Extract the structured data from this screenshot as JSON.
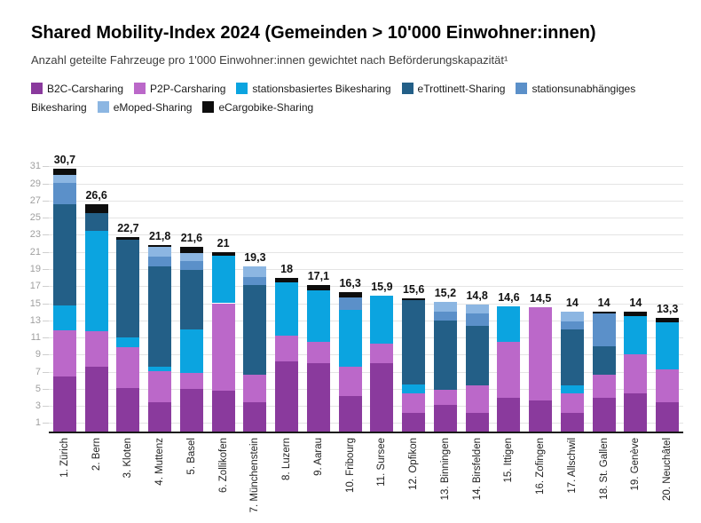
{
  "header": {
    "title": "Shared Mobility-Index 2024 (Gemeinden > 10'000 Einwohner:innen)",
    "subtitle": "Anzahl geteilte Fahrzeuge pro 1'000 Einwohner:innen gewichtet nach Beförderungskapazität¹"
  },
  "colors": {
    "b2c_carsharing": "#8a3a9d",
    "p2p_carsharing": "#bb68c9",
    "stationsbasiertes_bikesharing": "#0ba4e0",
    "etrottinett_sharing": "#235f87",
    "stationsunabhaengiges_bikesharing": "#5b90c9",
    "emoped_sharing": "#8cb6e2",
    "ecargobike_sharing": "#0d0d0d",
    "grid": "#e4e4e4",
    "axis_line": "#1a1a1a",
    "ytick_text": "#9f9f9f"
  },
  "chart_data": {
    "type": "bar",
    "stacked": true,
    "grid": true,
    "legend_position": "top",
    "ylim": [
      0,
      32
    ],
    "yticks": [
      1,
      3,
      5,
      7,
      9,
      11,
      13,
      15,
      17,
      19,
      21,
      23,
      25,
      27,
      29,
      31
    ],
    "xlabel": "",
    "ylabel": "",
    "title": "Shared Mobility-Index 2024 (Gemeinden > 10'000 Einwohner:innen)",
    "subtitle": "Anzahl geteilte Fahrzeuge pro 1'000 Einwohner:innen gewichtet nach Beförderungskapazität¹",
    "categories": [
      "1. Zürich",
      "2. Bern",
      "3. Kloten",
      "4. Muttenz",
      "5. Basel",
      "6. Zollikofen",
      "7. Münchenstein",
      "8. Luzern",
      "9. Aarau",
      "10. Fribourg",
      "11. Sursee",
      "12. Opfikon",
      "13. Binningen",
      "14. Birsfelden",
      "15. Ittigen",
      "16. Zofingen",
      "17. Allschwil",
      "18. St. Gallen",
      "19. Genève",
      "20. Neuchâtel"
    ],
    "series": [
      {
        "name": "B2C-Carsharing",
        "color": "#8a3a9d",
        "values": [
          6.4,
          7.6,
          5.1,
          3.4,
          5.0,
          4.8,
          3.4,
          8.2,
          8.0,
          4.2,
          8.0,
          2.2,
          3.1,
          2.2,
          3.9,
          3.6,
          2.2,
          3.9,
          4.5,
          3.4
        ]
      },
      {
        "name": "P2P-Carsharing",
        "color": "#bb68c9",
        "values": [
          5.4,
          4.1,
          4.8,
          3.7,
          1.9,
          10.2,
          3.2,
          3.0,
          2.5,
          3.4,
          2.3,
          2.3,
          1.8,
          3.2,
          6.6,
          10.9,
          2.3,
          2.7,
          4.5,
          3.9
        ]
      },
      {
        "name": "stationsbasiertes Bikesharing",
        "color": "#0ba4e0",
        "values": [
          2.9,
          11.8,
          1.1,
          0.5,
          5.0,
          5.6,
          0,
          6.2,
          6.0,
          6.6,
          5.6,
          1.0,
          0,
          0,
          4.1,
          0,
          0.9,
          0,
          4.5,
          5.5
        ]
      },
      {
        "name": "eTrottinett-Sharing",
        "color": "#235f87",
        "values": [
          11.9,
          2.0,
          11.4,
          11.7,
          7.0,
          0,
          10.5,
          0,
          0,
          0,
          0,
          9.9,
          8.1,
          7.0,
          0,
          0,
          6.5,
          3.4,
          0,
          0
        ]
      },
      {
        "name": "stationsunabhängiges Bikesharing",
        "color": "#5b90c9",
        "values": [
          2.5,
          0,
          0,
          1.2,
          1.0,
          0,
          1.0,
          0,
          0,
          1.5,
          0,
          0,
          1.0,
          1.4,
          0,
          0,
          1.0,
          3.8,
          0,
          0
        ]
      },
      {
        "name": "eMoped-Sharing",
        "color": "#8cb6e2",
        "values": [
          0.9,
          0,
          0,
          1.1,
          1.0,
          0,
          1.2,
          0,
          0,
          0,
          0,
          0,
          1.2,
          1.0,
          0,
          0,
          1.1,
          0,
          0,
          0
        ]
      },
      {
        "name": "eCargobike-Sharing",
        "color": "#0d0d0d",
        "values": [
          0.7,
          1.1,
          0.3,
          0.2,
          0.7,
          0.4,
          0,
          0.6,
          0.6,
          0.6,
          0,
          0.2,
          0,
          0,
          0,
          0,
          0,
          0.2,
          0.5,
          0.5
        ]
      }
    ],
    "totals": [
      30.7,
      26.6,
      22.7,
      21.8,
      21.6,
      21,
      19.3,
      18,
      17.1,
      16.3,
      15.9,
      15.6,
      15.2,
      14.8,
      14.6,
      14.5,
      14,
      14,
      14,
      13.3
    ],
    "total_labels": [
      "30,7",
      "26,6",
      "22,7",
      "21,8",
      "21,6",
      "21",
      "19,3",
      "18",
      "17,1",
      "16,3",
      "15,9",
      "15,6",
      "15,2",
      "14,8",
      "14,6",
      "14,5",
      "14",
      "14",
      "14",
      "13,3"
    ]
  }
}
